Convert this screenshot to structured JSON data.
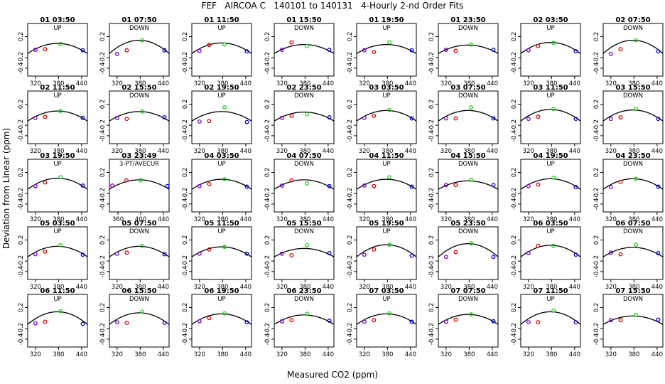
{
  "chart_data": {
    "type": "scatter",
    "title": "FEF   AIRCOA C   140101 to 140131   4-Hourly 2-nd Order Fits",
    "xlabel": "Measured CO2 (ppm)",
    "ylabel": "Deviation from Linear (ppm)",
    "xlim": [
      300,
      455
    ],
    "ylim": [
      -0.55,
      0.45
    ],
    "yticks": [
      0.2,
      -0.2,
      -0.4
    ],
    "xticks": [
      320,
      380,
      440
    ],
    "grid": false,
    "colors": {
      "low": "#7b00c8",
      "mid": "#e00000",
      "high_mid": "#22cc22",
      "high": "#0000e0",
      "fit": "#000000"
    },
    "panels": [
      {
        "title": "01 03:50",
        "label": "UP",
        "curve": 0.07,
        "points": [
          -0.05,
          -0.04,
          0.06,
          -0.06
        ]
      },
      {
        "title": "01 07:50",
        "label": "DOWN",
        "curve": 0.13,
        "points": [
          -0.13,
          -0.06,
          0.13,
          -0.06
        ]
      },
      {
        "title": "01 11:50",
        "label": "UP",
        "curve": 0.08,
        "points": [
          -0.07,
          0.04,
          0.05,
          -0.08
        ]
      },
      {
        "title": "01 15:50",
        "label": "DOWN",
        "curve": 0.05,
        "points": [
          -0.05,
          0.09,
          0.02,
          -0.05
        ]
      },
      {
        "title": "01 19:50",
        "label": "UP",
        "curve": 0.05,
        "points": [
          -0.06,
          -0.09,
          0.09,
          -0.06
        ]
      },
      {
        "title": "01 23:50",
        "label": "DOWN",
        "curve": 0.04,
        "points": [
          -0.05,
          -0.07,
          0.05,
          -0.05
        ]
      },
      {
        "title": "02 03:50",
        "label": "UP",
        "curve": 0.09,
        "points": [
          -0.06,
          0.02,
          0.08,
          -0.08
        ]
      },
      {
        "title": "02 07:50",
        "label": "DOWN",
        "curve": 0.13,
        "points": [
          -0.13,
          -0.04,
          0.13,
          -0.08
        ]
      },
      {
        "title": "02 11:50",
        "label": "UP",
        "curve": 0.07,
        "points": [
          -0.06,
          -0.04,
          0.07,
          -0.06
        ]
      },
      {
        "title": "02 15:50",
        "label": "DOWN",
        "curve": 0.06,
        "points": [
          -0.06,
          -0.08,
          0.06,
          -0.05
        ]
      },
      {
        "title": "02 19:50",
        "label": "UP",
        "curve": 0.06,
        "points": [
          -0.13,
          -0.12,
          0.14,
          -0.14
        ]
      },
      {
        "title": "02 23:50",
        "label": "DOWN",
        "curve": 0.05,
        "points": [
          -0.06,
          -0.02,
          0.01,
          -0.05
        ]
      },
      {
        "title": "03 03:50",
        "label": "UP",
        "curve": 0.08,
        "points": [
          -0.06,
          -0.02,
          0.09,
          -0.07
        ]
      },
      {
        "title": "03 07:50",
        "label": "DOWN",
        "curve": 0.08,
        "points": [
          -0.07,
          -0.07,
          0.14,
          -0.07
        ]
      },
      {
        "title": "03 11:50",
        "label": "UP",
        "curve": 0.1,
        "points": [
          -0.08,
          -0.04,
          0.11,
          -0.08
        ]
      },
      {
        "title": "03 15:50",
        "label": "DOWN",
        "curve": 0.09,
        "points": [
          -0.08,
          -0.05,
          0.11,
          -0.08
        ]
      },
      {
        "title": "03 19:50",
        "label": "UP",
        "curve": 0.09,
        "points": [
          -0.06,
          0.01,
          0.11,
          -0.05
        ]
      },
      {
        "title": "03 23:49",
        "label": "3-PT/AVECUR",
        "curve": 0.06,
        "points": [
          -0.05,
          0.05,
          0.05,
          -0.06
        ],
        "xticks": [
          360,
          400,
          440
        ],
        "xlim": [
          345,
          450
        ]
      },
      {
        "title": "04 03:50",
        "label": "UP",
        "curve": 0.07,
        "points": [
          -0.06,
          -0.02,
          0.07,
          -0.07
        ]
      },
      {
        "title": "04 07:50",
        "label": "DOWN",
        "curve": 0.06,
        "points": [
          -0.05,
          0.05,
          -0.01,
          -0.06
        ]
      },
      {
        "title": "04 11:50",
        "label": "UP",
        "curve": 0.07,
        "points": [
          -0.05,
          -0.06,
          0.11,
          -0.07
        ]
      },
      {
        "title": "04 15:50",
        "label": "DOWN",
        "curve": 0.04,
        "points": [
          -0.04,
          -0.04,
          0.06,
          -0.04
        ]
      },
      {
        "title": "04 19:50",
        "label": "UP",
        "curve": 0.08,
        "points": [
          -0.06,
          -0.03,
          0.1,
          -0.08
        ]
      },
      {
        "title": "04 23:50",
        "label": "DOWN",
        "curve": 0.08,
        "points": [
          -0.08,
          0.02,
          0.08,
          -0.07
        ]
      },
      {
        "title": "05 03:50",
        "label": "UP",
        "curve": 0.08,
        "points": [
          -0.07,
          -0.02,
          0.1,
          -0.08
        ]
      },
      {
        "title": "05 07:50",
        "label": "DOWN",
        "curve": 0.08,
        "points": [
          -0.06,
          -0.04,
          0.09,
          -0.07
        ]
      },
      {
        "title": "05 11:50",
        "label": "UP",
        "curve": 0.07,
        "points": [
          -0.06,
          0.02,
          0.07,
          -0.06
        ]
      },
      {
        "title": "05 15:50",
        "label": "DOWN",
        "curve": 0.04,
        "points": [
          -0.06,
          -0.09,
          0.1,
          -0.05
        ]
      },
      {
        "title": "05 19:50",
        "label": "UP",
        "curve": 0.11,
        "points": [
          -0.08,
          0.02,
          0.11,
          -0.1
        ]
      },
      {
        "title": "05 23:50",
        "label": "DOWN",
        "curve": 0.13,
        "points": [
          -0.12,
          -0.03,
          0.14,
          -0.12
        ]
      },
      {
        "title": "06 03:50",
        "label": "UP",
        "curve": 0.1,
        "points": [
          -0.05,
          0.09,
          0.09,
          -0.08
        ]
      },
      {
        "title": "06 07:50",
        "label": "DOWN",
        "curve": 0.06,
        "points": [
          -0.04,
          -0.07,
          0.11,
          -0.05
        ]
      },
      {
        "title": "06 11:50",
        "label": "UP",
        "curve": 0.12,
        "points": [
          -0.1,
          -0.07,
          0.13,
          -0.11
        ]
      },
      {
        "title": "06 15:50",
        "label": "DOWN",
        "curve": 0.1,
        "points": [
          -0.08,
          -0.09,
          0.12,
          -0.09
        ]
      },
      {
        "title": "06 19:50",
        "label": "UP",
        "curve": 0.08,
        "points": [
          -0.06,
          0.0,
          0.09,
          -0.08
        ]
      },
      {
        "title": "06 23:50",
        "label": "DOWN",
        "curve": 0.06,
        "points": [
          -0.06,
          -0.04,
          0.08,
          -0.05
        ]
      },
      {
        "title": "07 03:50",
        "label": "UP",
        "curve": 0.08,
        "points": [
          -0.07,
          -0.04,
          0.09,
          -0.07
        ]
      },
      {
        "title": "07 07:50",
        "label": "DOWN",
        "curve": 0.07,
        "points": [
          -0.07,
          -0.03,
          0.07,
          -0.06
        ]
      },
      {
        "title": "07 11:50",
        "label": "UP",
        "curve": 0.12,
        "points": [
          -0.08,
          -0.08,
          0.14,
          -0.08
        ]
      },
      {
        "title": "07 15:50",
        "label": "DOWN",
        "curve": 0.04,
        "points": [
          -0.04,
          -0.04,
          0.06,
          -0.03
        ]
      }
    ]
  }
}
